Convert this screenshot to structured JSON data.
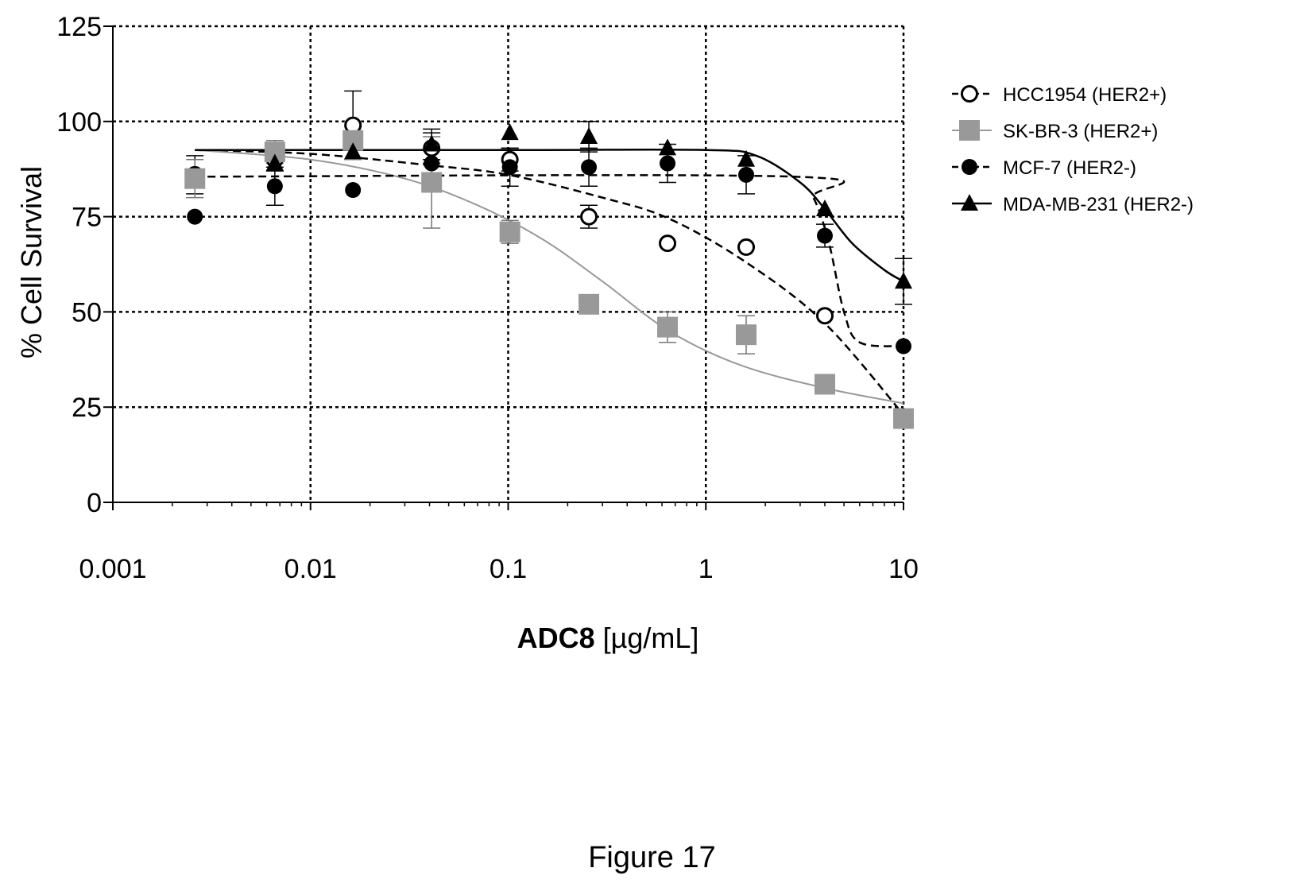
{
  "chart_data": {
    "type": "scatter",
    "xscale": "log",
    "xlim": [
      0.001,
      10
    ],
    "ylim": [
      0,
      125
    ],
    "xticks": [
      0.001,
      0.01,
      0.1,
      1,
      10
    ],
    "xtick_labels": [
      "0.001",
      "0.01",
      "0.1",
      "1",
      "10"
    ],
    "yticks": [
      0,
      25,
      50,
      75,
      100,
      125
    ],
    "ytick_labels": [
      "0",
      "25",
      "50",
      "75",
      "100",
      "125"
    ],
    "xlabel_bold": "ADC8",
    "xlabel_rest": " [µg/mL]",
    "ylabel": "% Cell Survival",
    "grid": true,
    "legend_position": "right",
    "series": [
      {
        "name": "HCC1954 (HER2+)",
        "marker": "open-circle",
        "line_style": "dashed",
        "color": "#000000",
        "x": [
          0.0026,
          0.0066,
          0.0164,
          0.041,
          0.102,
          0.256,
          0.64,
          1.6,
          4.0,
          10.0
        ],
        "y": [
          86,
          90,
          99,
          93,
          90,
          75,
          68,
          67,
          49,
          22
        ],
        "err": [
          5,
          3,
          9,
          4,
          3,
          3,
          0,
          0,
          0,
          0
        ],
        "fit": {
          "x": [
            0.0026,
            0.01,
            0.04,
            0.1,
            0.3,
            0.65,
            1.6,
            4.0,
            10.0
          ],
          "y": [
            92.5,
            91.5,
            88.5,
            86,
            80,
            74.5,
            63,
            47,
            23
          ]
        }
      },
      {
        "name": "SK-BR-3 (HER2+)",
        "marker": "square",
        "line_style": "solid",
        "color": "#999999",
        "x": [
          0.0026,
          0.0066,
          0.0164,
          0.041,
          0.102,
          0.256,
          0.64,
          1.6,
          4.0,
          10.0
        ],
        "y": [
          85,
          92,
          95,
          84,
          71,
          52,
          46,
          44,
          31,
          22
        ],
        "err": [
          5,
          3,
          5,
          12,
          3,
          0,
          4,
          5,
          0,
          0
        ],
        "fit": {
          "x": [
            0.0026,
            0.01,
            0.03,
            0.07,
            0.15,
            0.3,
            0.65,
            1.5,
            4.0,
            10.0
          ],
          "y": [
            92.5,
            90,
            85,
            78,
            69,
            58,
            45,
            36,
            30,
            26
          ]
        }
      },
      {
        "name": "MCF-7 (HER2-)",
        "marker": "filled-circle",
        "line_style": "dashed",
        "color": "#000000",
        "x": [
          0.0026,
          0.0066,
          0.0164,
          0.041,
          0.102,
          0.256,
          0.64,
          1.6,
          4.0,
          10.0
        ],
        "y": [
          75,
          83,
          82,
          89,
          88,
          88,
          89,
          86,
          70,
          41
        ],
        "err": [
          0,
          5,
          0,
          0,
          5,
          5,
          5,
          5,
          3,
          0
        ],
        "fit": {
          "x": [
            0.0026,
            2.8,
            3.5,
            4.2,
            5.0,
            6.0,
            10.0
          ],
          "y": [
            85.5,
            85.5,
            80,
            68,
            50,
            42,
            41
          ]
        }
      },
      {
        "name": "MDA-MB-231 (HER2-)",
        "marker": "filled-triangle",
        "line_style": "solid",
        "color": "#000000",
        "x": [
          0.0066,
          0.0164,
          0.041,
          0.102,
          0.256,
          0.64,
          1.6,
          4.0,
          10.0
        ],
        "y": [
          89,
          92,
          94,
          97,
          96,
          93,
          90,
          77,
          58
        ],
        "err": [
          0,
          0,
          4,
          0,
          4,
          0,
          0,
          0,
          6
        ],
        "fit": {
          "x": [
            0.0026,
            0.1,
            1.0,
            1.8,
            3.0,
            4.0,
            5.5,
            8.0,
            10.0
          ],
          "y": [
            92.5,
            92.5,
            92.5,
            91,
            84,
            77,
            68,
            61,
            58
          ]
        }
      }
    ]
  },
  "caption": "Figure 17"
}
